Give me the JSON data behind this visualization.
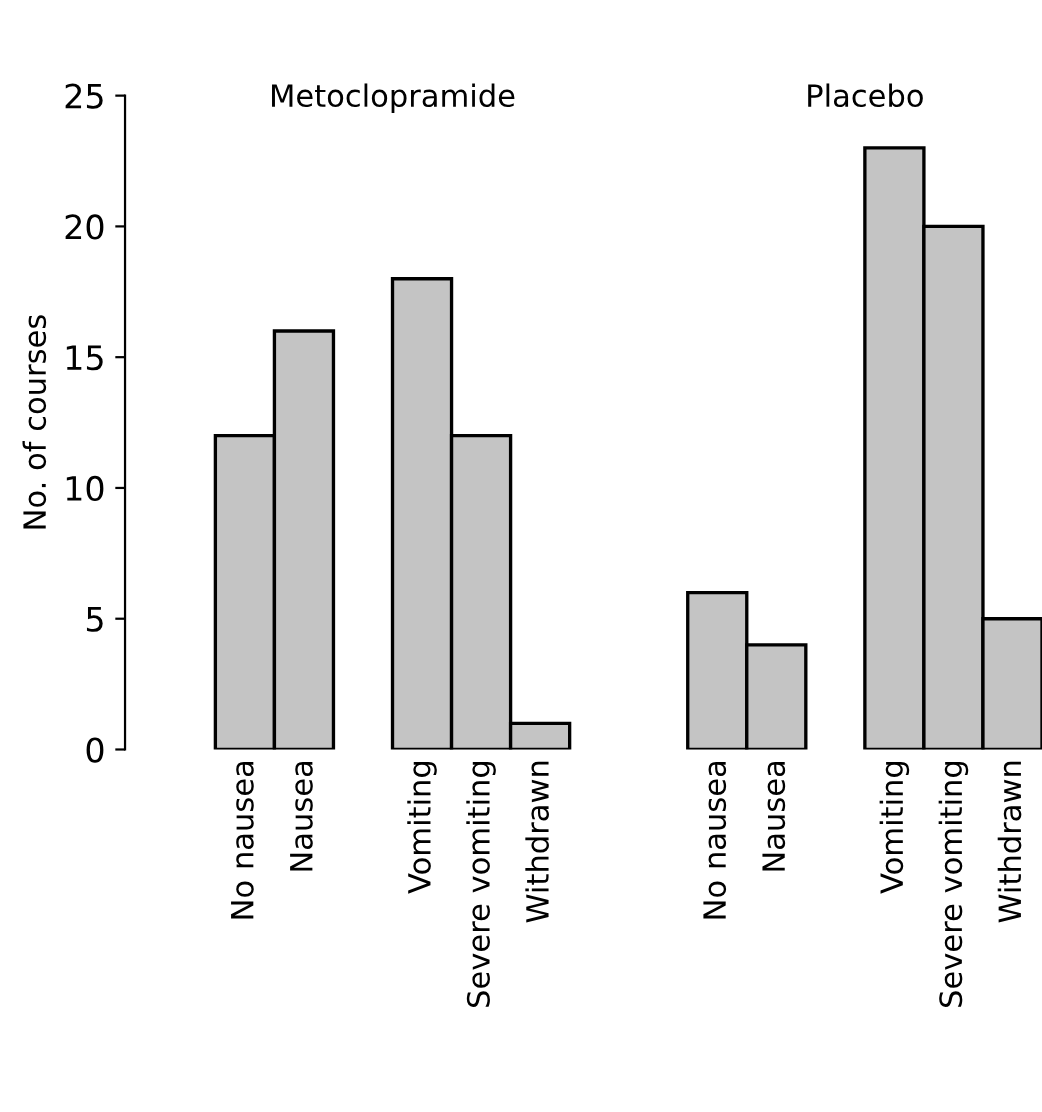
{
  "chart_data": {
    "type": "bar",
    "ylabel": "No. of courses",
    "categories": [
      "No nausea",
      "Nausea",
      null,
      "Vomiting",
      "Severe vomiting",
      "Withdrawn",
      null,
      null,
      "No nausea",
      "Nausea",
      null,
      "Vomiting",
      "Severe vomiting",
      "Withdrawn"
    ],
    "values": [
      12,
      16,
      null,
      18,
      12,
      1,
      null,
      null,
      6,
      4,
      null,
      23,
      20,
      5
    ],
    "color": "#c4c4c4",
    "ylim": [
      0,
      25
    ],
    "yticks": [
      0,
      5,
      10,
      15,
      20,
      25
    ],
    "grid": false,
    "legend": false,
    "annotations": [
      "Metoclopramide",
      "Placebo"
    ]
  }
}
